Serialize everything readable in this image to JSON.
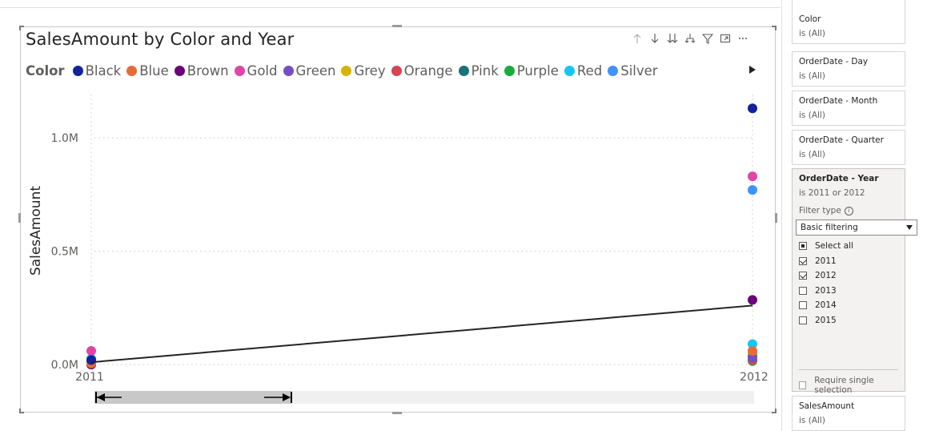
{
  "visual": {
    "title": "SalesAmount by Color and Year",
    "toolbar_icons": [
      "arrow-up-icon",
      "arrow-down-icon",
      "double-arrow-down-icon",
      "expand-hierarchy-icon",
      "filter-icon",
      "focus-mode-icon",
      "more-options-icon"
    ]
  },
  "chart_data": {
    "type": "line",
    "title": "SalesAmount by Color and Year",
    "xlabel": "",
    "ylabel": "SalesAmount",
    "x_categories": [
      "2011",
      "2012"
    ],
    "y_ticks": [
      "0.0M",
      "0.5M",
      "1.0M"
    ],
    "ylim": [
      0,
      1150000
    ],
    "grid": true,
    "legend_title": "Color",
    "legend_position": "top",
    "series": [
      {
        "name": "Black",
        "color": "#12239E",
        "values": [
          20000,
          1130000
        ]
      },
      {
        "name": "Blue",
        "color": "#E66C37",
        "values": [
          5000,
          60000
        ]
      },
      {
        "name": "Brown",
        "color": "#6B007B",
        "values": [
          0,
          285000
        ]
      },
      {
        "name": "Gold",
        "color": "#E044A7",
        "values": [
          60000,
          830000
        ]
      },
      {
        "name": "Green",
        "color": "#744EC2",
        "values": [
          10000,
          30000
        ]
      },
      {
        "name": "Grey",
        "color": "#D9B300",
        "values": [
          0,
          50000
        ]
      },
      {
        "name": "Orange",
        "color": "#D64550",
        "values": [
          0,
          20000
        ]
      },
      {
        "name": "Pink",
        "color": "#197278",
        "values": [
          15000,
          40000
        ]
      },
      {
        "name": "Purple",
        "color": "#1AAB40",
        "values": [
          0,
          15000
        ]
      },
      {
        "name": "Red",
        "color": "#15C6F4",
        "values": [
          25000,
          90000
        ]
      },
      {
        "name": "Silver",
        "color": "#4092FF",
        "values": [
          15000,
          770000
        ]
      }
    ],
    "trend_line": {
      "values": [
        10000,
        260000
      ],
      "color": "#252423"
    }
  },
  "filters": {
    "cards": [
      {
        "title": "Color",
        "sub": "is (All)"
      },
      {
        "title": "OrderDate - Day",
        "sub": "is (All)"
      },
      {
        "title": "OrderDate - Month",
        "sub": "is (All)"
      },
      {
        "title": "OrderDate - Quarter",
        "sub": "is (All)"
      }
    ],
    "active": {
      "title": "OrderDate - Year",
      "sub": "is 2011 or 2012",
      "filter_type_label": "Filter type",
      "filter_type_value": "Basic filtering",
      "options": [
        {
          "label": "Select all",
          "state": "partial"
        },
        {
          "label": "2011",
          "state": "checked"
        },
        {
          "label": "2012",
          "state": "checked"
        },
        {
          "label": "2013",
          "state": "unchecked"
        },
        {
          "label": "2014",
          "state": "unchecked"
        },
        {
          "label": "2015",
          "state": "unchecked"
        }
      ],
      "require_single": "Require single selection"
    },
    "bottom_card": {
      "title": "SalesAmount",
      "sub": "is (All)"
    }
  }
}
